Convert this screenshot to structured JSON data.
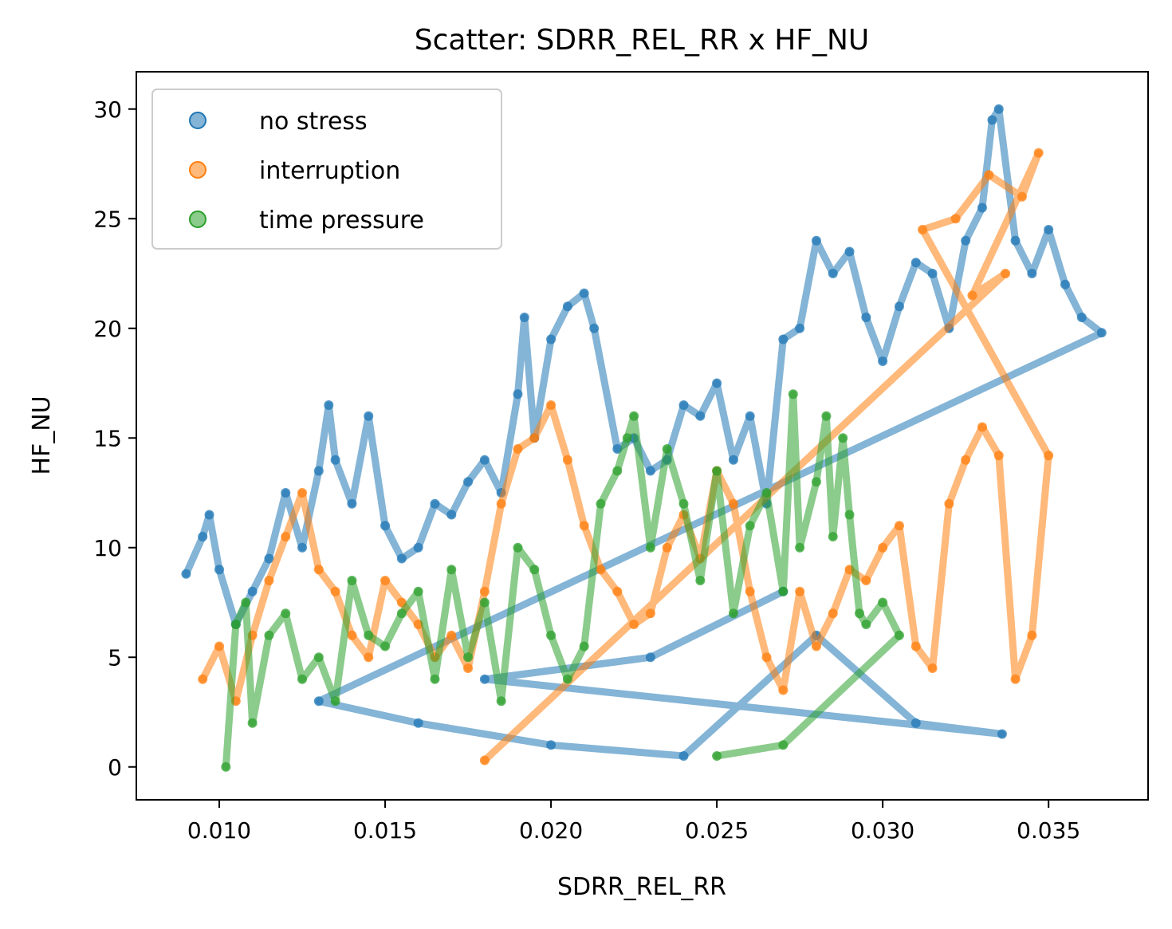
{
  "chart_data": {
    "type": "scatter",
    "title": "Scatter: SDRR_REL_RR x HF_NU",
    "xlabel": "SDRR_REL_RR",
    "ylabel": "HF_NU",
    "xlim": [
      0.0075,
      0.038
    ],
    "ylim": [
      -1.5,
      31.7
    ],
    "xticks": [
      0.01,
      0.015,
      0.02,
      0.025,
      0.03,
      0.035
    ],
    "xtick_labels": [
      "0.010",
      "0.015",
      "0.020",
      "0.025",
      "0.030",
      "0.035"
    ],
    "yticks": [
      0,
      5,
      10,
      15,
      20,
      25,
      30
    ],
    "ytick_labels": [
      "0",
      "5",
      "10",
      "15",
      "20",
      "25",
      "30"
    ],
    "legend_position": "top-left",
    "grid": false,
    "series": [
      {
        "name": "no stress",
        "color": "#1f77b4",
        "x": [
          0.009,
          0.0095,
          0.0097,
          0.01,
          0.0105,
          0.011,
          0.0115,
          0.012,
          0.0125,
          0.013,
          0.0133,
          0.0135,
          0.014,
          0.0145,
          0.015,
          0.0155,
          0.016,
          0.0165,
          0.017,
          0.0175,
          0.018,
          0.0185,
          0.019,
          0.0192,
          0.0195,
          0.02,
          0.0205,
          0.021,
          0.0213,
          0.022,
          0.0225,
          0.023,
          0.0235,
          0.024,
          0.0245,
          0.025,
          0.0255,
          0.026,
          0.0265,
          0.027,
          0.0275,
          0.028,
          0.0285,
          0.029,
          0.0295,
          0.03,
          0.0305,
          0.031,
          0.0315,
          0.032,
          0.0325,
          0.033,
          0.0333,
          0.0335,
          0.034,
          0.0345,
          0.035,
          0.0355,
          0.036,
          0.0366,
          0.013,
          0.016,
          0.02,
          0.024,
          0.028,
          0.031,
          0.0336,
          0.018,
          0.023,
          0.027
        ],
        "y": [
          8.8,
          10.5,
          11.5,
          9.0,
          6.5,
          8.0,
          9.5,
          12.5,
          10.0,
          13.5,
          16.5,
          14.0,
          12.0,
          16.0,
          11.0,
          9.5,
          10.0,
          12.0,
          11.5,
          13.0,
          14.0,
          12.5,
          17.0,
          20.5,
          15.0,
          19.5,
          21.0,
          21.6,
          20.0,
          14.5,
          15.0,
          13.5,
          14.0,
          16.5,
          16.0,
          17.5,
          14.0,
          16.0,
          12.0,
          19.5,
          20.0,
          24.0,
          22.5,
          23.5,
          20.5,
          18.5,
          21.0,
          23.0,
          22.5,
          20.0,
          24.0,
          25.5,
          29.5,
          30.0,
          24.0,
          22.5,
          24.5,
          22.0,
          20.5,
          19.8,
          3.0,
          2.0,
          1.0,
          0.5,
          6.0,
          2.0,
          1.5,
          4.0,
          5.0,
          8.0
        ]
      },
      {
        "name": "interruption",
        "color": "#ff7f0e",
        "x": [
          0.0095,
          0.01,
          0.0105,
          0.011,
          0.0115,
          0.012,
          0.0125,
          0.013,
          0.0135,
          0.014,
          0.0145,
          0.015,
          0.0155,
          0.016,
          0.0165,
          0.017,
          0.0175,
          0.018,
          0.0185,
          0.019,
          0.0195,
          0.02,
          0.0205,
          0.021,
          0.0215,
          0.022,
          0.0225,
          0.023,
          0.0235,
          0.024,
          0.0245,
          0.025,
          0.0255,
          0.026,
          0.0265,
          0.027,
          0.0275,
          0.028,
          0.0285,
          0.029,
          0.0295,
          0.03,
          0.0305,
          0.031,
          0.0315,
          0.032,
          0.0325,
          0.033,
          0.0335,
          0.034,
          0.0345,
          0.035,
          0.0312,
          0.0322,
          0.0332,
          0.0342,
          0.0347,
          0.0327,
          0.0337,
          0.018
        ],
        "y": [
          4.0,
          5.5,
          3.0,
          6.0,
          8.5,
          10.5,
          12.5,
          9.0,
          8.0,
          6.0,
          5.0,
          8.5,
          7.5,
          6.5,
          5.0,
          6.0,
          4.5,
          8.0,
          12.0,
          14.5,
          15.0,
          16.5,
          14.0,
          11.0,
          9.0,
          8.0,
          6.5,
          7.0,
          10.0,
          11.5,
          9.5,
          13.5,
          12.0,
          8.0,
          5.0,
          3.5,
          8.0,
          5.5,
          7.0,
          9.0,
          8.5,
          10.0,
          11.0,
          5.5,
          4.5,
          12.0,
          14.0,
          15.5,
          14.2,
          4.0,
          6.0,
          14.2,
          24.5,
          25.0,
          27.0,
          26.0,
          28.0,
          21.5,
          22.5,
          0.3
        ]
      },
      {
        "name": "time pressure",
        "color": "#2ca02c",
        "x": [
          0.0102,
          0.0105,
          0.0108,
          0.011,
          0.0115,
          0.012,
          0.0125,
          0.013,
          0.0135,
          0.014,
          0.0145,
          0.015,
          0.0155,
          0.016,
          0.0165,
          0.017,
          0.0175,
          0.018,
          0.0185,
          0.019,
          0.0195,
          0.02,
          0.0205,
          0.021,
          0.0215,
          0.022,
          0.0223,
          0.0225,
          0.023,
          0.0235,
          0.024,
          0.0245,
          0.025,
          0.0255,
          0.026,
          0.0265,
          0.027,
          0.0273,
          0.0275,
          0.028,
          0.0283,
          0.0285,
          0.0288,
          0.029,
          0.0293,
          0.0295,
          0.03,
          0.0305,
          0.027,
          0.025
        ],
        "y": [
          0.0,
          6.5,
          7.5,
          2.0,
          6.0,
          7.0,
          4.0,
          5.0,
          3.0,
          8.5,
          6.0,
          5.5,
          7.0,
          8.0,
          4.0,
          9.0,
          5.0,
          7.5,
          3.0,
          10.0,
          9.0,
          6.0,
          4.0,
          5.5,
          12.0,
          13.5,
          15.0,
          16.0,
          10.0,
          14.5,
          12.0,
          8.5,
          13.5,
          7.0,
          11.0,
          12.5,
          8.0,
          17.0,
          10.0,
          13.0,
          16.0,
          10.5,
          15.0,
          11.5,
          7.0,
          6.5,
          7.5,
          6.0,
          1.0,
          0.5
        ]
      }
    ]
  }
}
